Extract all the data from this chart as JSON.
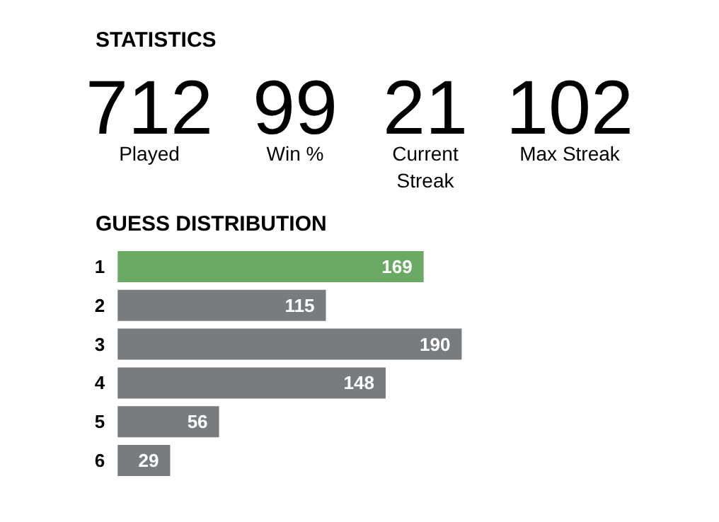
{
  "chart_data": [
    {
      "type": "other",
      "title": "STATISTICS",
      "annotations": [
        "712",
        "Played",
        "99",
        "Win %",
        "21",
        "Current\nStreak",
        "102",
        "Max Streak"
      ]
    },
    {
      "type": "bar",
      "orientation": "horizontal",
      "title": "GUESS DISTRIBUTION",
      "categories": [
        "1",
        "2",
        "3",
        "4",
        "5",
        "6"
      ],
      "values": [
        169,
        115,
        190,
        148,
        56,
        29
      ],
      "colors": [
        "#6aaa64",
        "#787c7e",
        "#787c7e",
        "#787c7e",
        "#787c7e",
        "#787c7e"
      ],
      "data_labels": true
    }
  ]
}
